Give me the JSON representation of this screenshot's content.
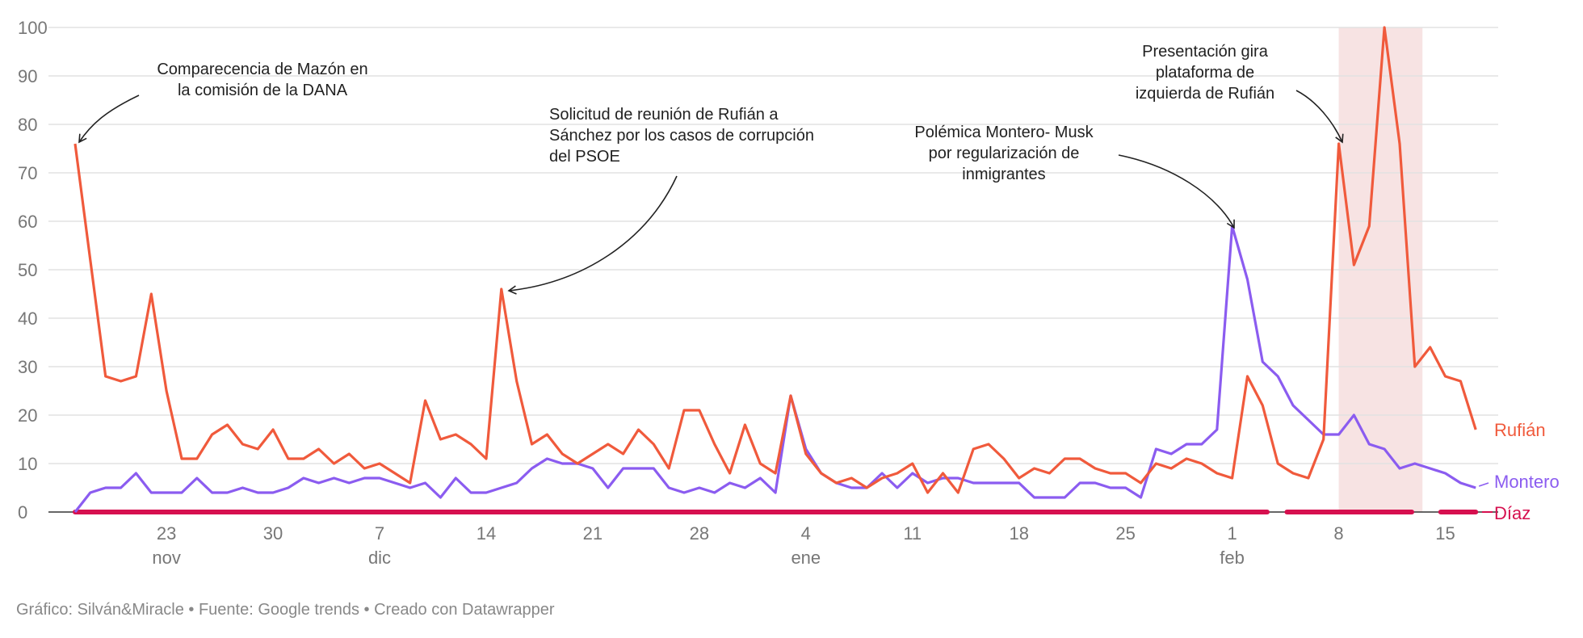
{
  "chart_data": {
    "type": "line",
    "y_axis": {
      "ylim": [
        0,
        100
      ],
      "ticks": [
        0,
        10,
        20,
        30,
        40,
        50,
        60,
        70,
        80,
        90,
        100
      ]
    },
    "x_ticks": [
      {
        "index": 6,
        "day": "23",
        "month": "nov"
      },
      {
        "index": 13,
        "day": "30",
        "month": ""
      },
      {
        "index": 20,
        "day": "7",
        "month": "dic"
      },
      {
        "index": 27,
        "day": "14",
        "month": ""
      },
      {
        "index": 34,
        "day": "21",
        "month": ""
      },
      {
        "index": 41,
        "day": "28",
        "month": ""
      },
      {
        "index": 48,
        "day": "4",
        "month": "ene"
      },
      {
        "index": 55,
        "day": "11",
        "month": ""
      },
      {
        "index": 62,
        "day": "18",
        "month": ""
      },
      {
        "index": 69,
        "day": "25",
        "month": ""
      },
      {
        "index": 76,
        "day": "1",
        "month": "feb"
      },
      {
        "index": 83,
        "day": "8",
        "month": ""
      },
      {
        "index": 90,
        "day": "15",
        "month": ""
      }
    ],
    "highlight_range": [
      83,
      88.5
    ],
    "series": [
      {
        "name": "Rufián",
        "color": "#f05a3c",
        "values": [
          76,
          52,
          28,
          27,
          28,
          45,
          25,
          11,
          11,
          16,
          18,
          14,
          13,
          17,
          11,
          11,
          13,
          10,
          12,
          9,
          10,
          8,
          6,
          23,
          15,
          16,
          14,
          11,
          46,
          27,
          14,
          16,
          12,
          10,
          12,
          14,
          12,
          17,
          14,
          9,
          21,
          21,
          14,
          8,
          18,
          10,
          8,
          24,
          12,
          8,
          6,
          7,
          5,
          7,
          8,
          10,
          4,
          8,
          4,
          13,
          14,
          11,
          7,
          9,
          8,
          11,
          11,
          9,
          8,
          8,
          6,
          10,
          9,
          11,
          10,
          8,
          7,
          28,
          22,
          10,
          8,
          7,
          15,
          76,
          51,
          59,
          100,
          76,
          30,
          34,
          28,
          27,
          17
        ]
      },
      {
        "name": "Montero",
        "color": "#8b5cf0",
        "values": [
          0,
          4,
          5,
          5,
          8,
          4,
          4,
          4,
          7,
          4,
          4,
          5,
          4,
          4,
          5,
          7,
          6,
          7,
          6,
          7,
          7,
          6,
          5,
          6,
          3,
          7,
          4,
          4,
          5,
          6,
          9,
          11,
          10,
          10,
          9,
          5,
          9,
          9,
          9,
          5,
          4,
          5,
          4,
          6,
          5,
          7,
          4,
          24,
          13,
          8,
          6,
          5,
          5,
          8,
          5,
          8,
          6,
          7,
          7,
          6,
          6,
          6,
          6,
          3,
          3,
          3,
          6,
          6,
          5,
          5,
          3,
          13,
          12,
          14,
          14,
          17,
          59,
          48,
          31,
          28,
          22,
          19,
          16,
          16,
          20,
          14,
          13,
          9,
          10,
          9,
          8,
          6,
          5
        ]
      },
      {
        "name": "Díaz",
        "color": "#d6104f",
        "values": [
          0,
          0,
          0,
          0,
          0,
          0,
          0,
          0,
          0,
          0,
          0,
          0,
          0,
          0,
          0,
          0,
          0,
          0,
          0,
          0,
          0,
          0,
          0,
          0,
          0,
          0,
          0,
          0,
          0,
          0,
          0,
          0,
          0,
          0,
          0,
          0,
          0,
          0,
          0,
          0,
          0,
          0,
          0,
          0,
          0,
          0,
          0,
          0,
          0,
          0,
          0,
          0,
          0,
          0,
          0,
          0,
          0,
          0,
          0,
          0,
          0,
          0,
          0,
          0,
          0,
          0,
          0,
          0,
          0,
          0,
          0,
          0,
          0,
          0,
          0,
          0,
          0,
          0,
          0,
          0,
          0,
          0,
          0,
          0,
          0,
          0,
          0,
          0,
          0,
          0,
          0,
          0,
          0
        ],
        "segments": [
          [
            0,
            78.3
          ],
          [
            79.6,
            87.8
          ],
          [
            89.7,
            92
          ]
        ]
      }
    ],
    "annotations": [
      {
        "lines": [
          "Comparecencia de  Mazón en",
          "la comisión de la DANA"
        ],
        "target_index": 0,
        "target_value": 76
      },
      {
        "lines": [
          "Solicitud de reunión de Rufián a",
          "Sánchez por los casos de corrupción",
          "del PSOE"
        ],
        "target_index": 28,
        "target_value": 46
      },
      {
        "lines": [
          "Polémica Montero- Musk",
          "por regularización de",
          "inmigrantes"
        ],
        "target_index": 76,
        "target_value": 59
      },
      {
        "lines": [
          "Presentación gira",
          "plataforma de",
          "izquierda de Rufián"
        ],
        "target_index": 83,
        "target_value": 76
      }
    ]
  },
  "footer": {
    "text": "Gráfico: Silván&Miracle • Fuente: Google trends • Creado con Datawrapper"
  }
}
